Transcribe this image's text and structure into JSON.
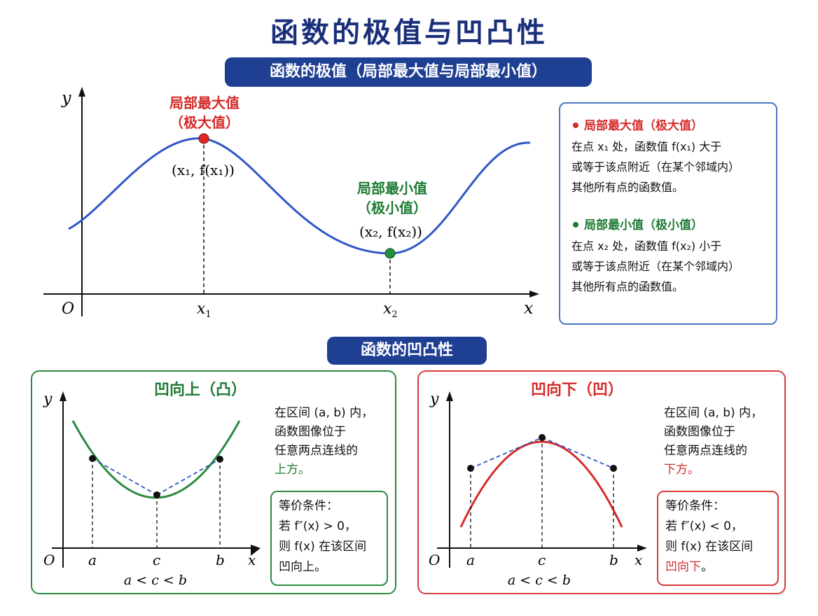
{
  "title": "函数的极值与凹凸性",
  "section1": {
    "header": "函数的极值（局部最大值与局部最小值）",
    "axis_y": "y",
    "axis_x": "x",
    "origin": "O",
    "x1_label": "x",
    "x1_sub": "1",
    "x2_label": "x",
    "x2_sub": "2",
    "max_label_1": "局部最大值",
    "max_label_2": "（极大值）",
    "max_point": "(x₁, f(x₁))",
    "min_label_1": "局部最小值",
    "min_label_2": "（极小值）",
    "min_point": "(x₂, f(x₂))"
  },
  "info_card": {
    "max_head": "局部最大值（极大值）",
    "max_l1": "在点 x₁ 处，函数值 f(x₁) 大于",
    "max_l2": "或等于该点附近（在某个邻域内）",
    "max_l3": "其他所有点的函数值。",
    "min_head": "局部最小值（极小值）",
    "min_l1": "在点 x₂ 处，函数值 f(x₂) 小于",
    "min_l2": "或等于该点附近（在某个邻域内）",
    "min_l3": "其他所有点的函数值。"
  },
  "section2": {
    "header": "函数的凹凸性"
  },
  "convex": {
    "title": "凹向上（凸）",
    "d1": "在区间 (a, b) 内，",
    "d2": "函数图像位于",
    "d3": "任意两点连线的",
    "d4": "上方。",
    "c1": "等价条件：",
    "c2": "若 f″(x) > 0，",
    "c3": "则 f(x) 在该区间",
    "c4": "凹向上。",
    "a": "a",
    "c": "c",
    "b": "b",
    "O": "O",
    "x": "x",
    "y": "y",
    "order": "a < c < b"
  },
  "concave": {
    "title": "凹向下（凹）",
    "d1": "在区间 (a, b) 内，",
    "d2": "函数图像位于",
    "d3": "任意两点连线的",
    "d4": "下方。",
    "c1": "等价条件：",
    "c2": "若 f″(x) < 0，",
    "c3": "则 f(x) 在该区间",
    "c4_pre": "凹向",
    "c4_hl": "下",
    "c4_post": "。",
    "a": "a",
    "c": "c",
    "b": "b",
    "O": "O",
    "x": "x",
    "y": "y",
    "order": "a < c < b"
  }
}
